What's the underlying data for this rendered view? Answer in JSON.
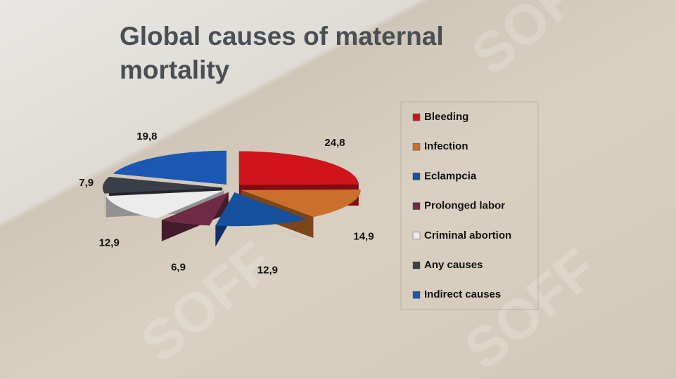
{
  "watermark": "SOFF",
  "chart_data": {
    "type": "pie",
    "title": "Global causes of maternal mortality",
    "categories": [
      "Bleeding",
      "Infection",
      "Eclampcia",
      "Prolonged labor",
      "Criminal abortion",
      "Any causes",
      "Indirect causes"
    ],
    "values": [
      24.8,
      14.9,
      12.9,
      6.9,
      12.9,
      7.9,
      19.8
    ],
    "value_labels": [
      "24,8",
      "14,9",
      "12,9",
      "6,9",
      "12,9",
      "7,9",
      "19,8"
    ],
    "colors": [
      "#d0141c",
      "#c8702c",
      "#17509c",
      "#6e2c44",
      "#ececec",
      "#3a3e46",
      "#1a58b4"
    ],
    "legend": "right"
  }
}
